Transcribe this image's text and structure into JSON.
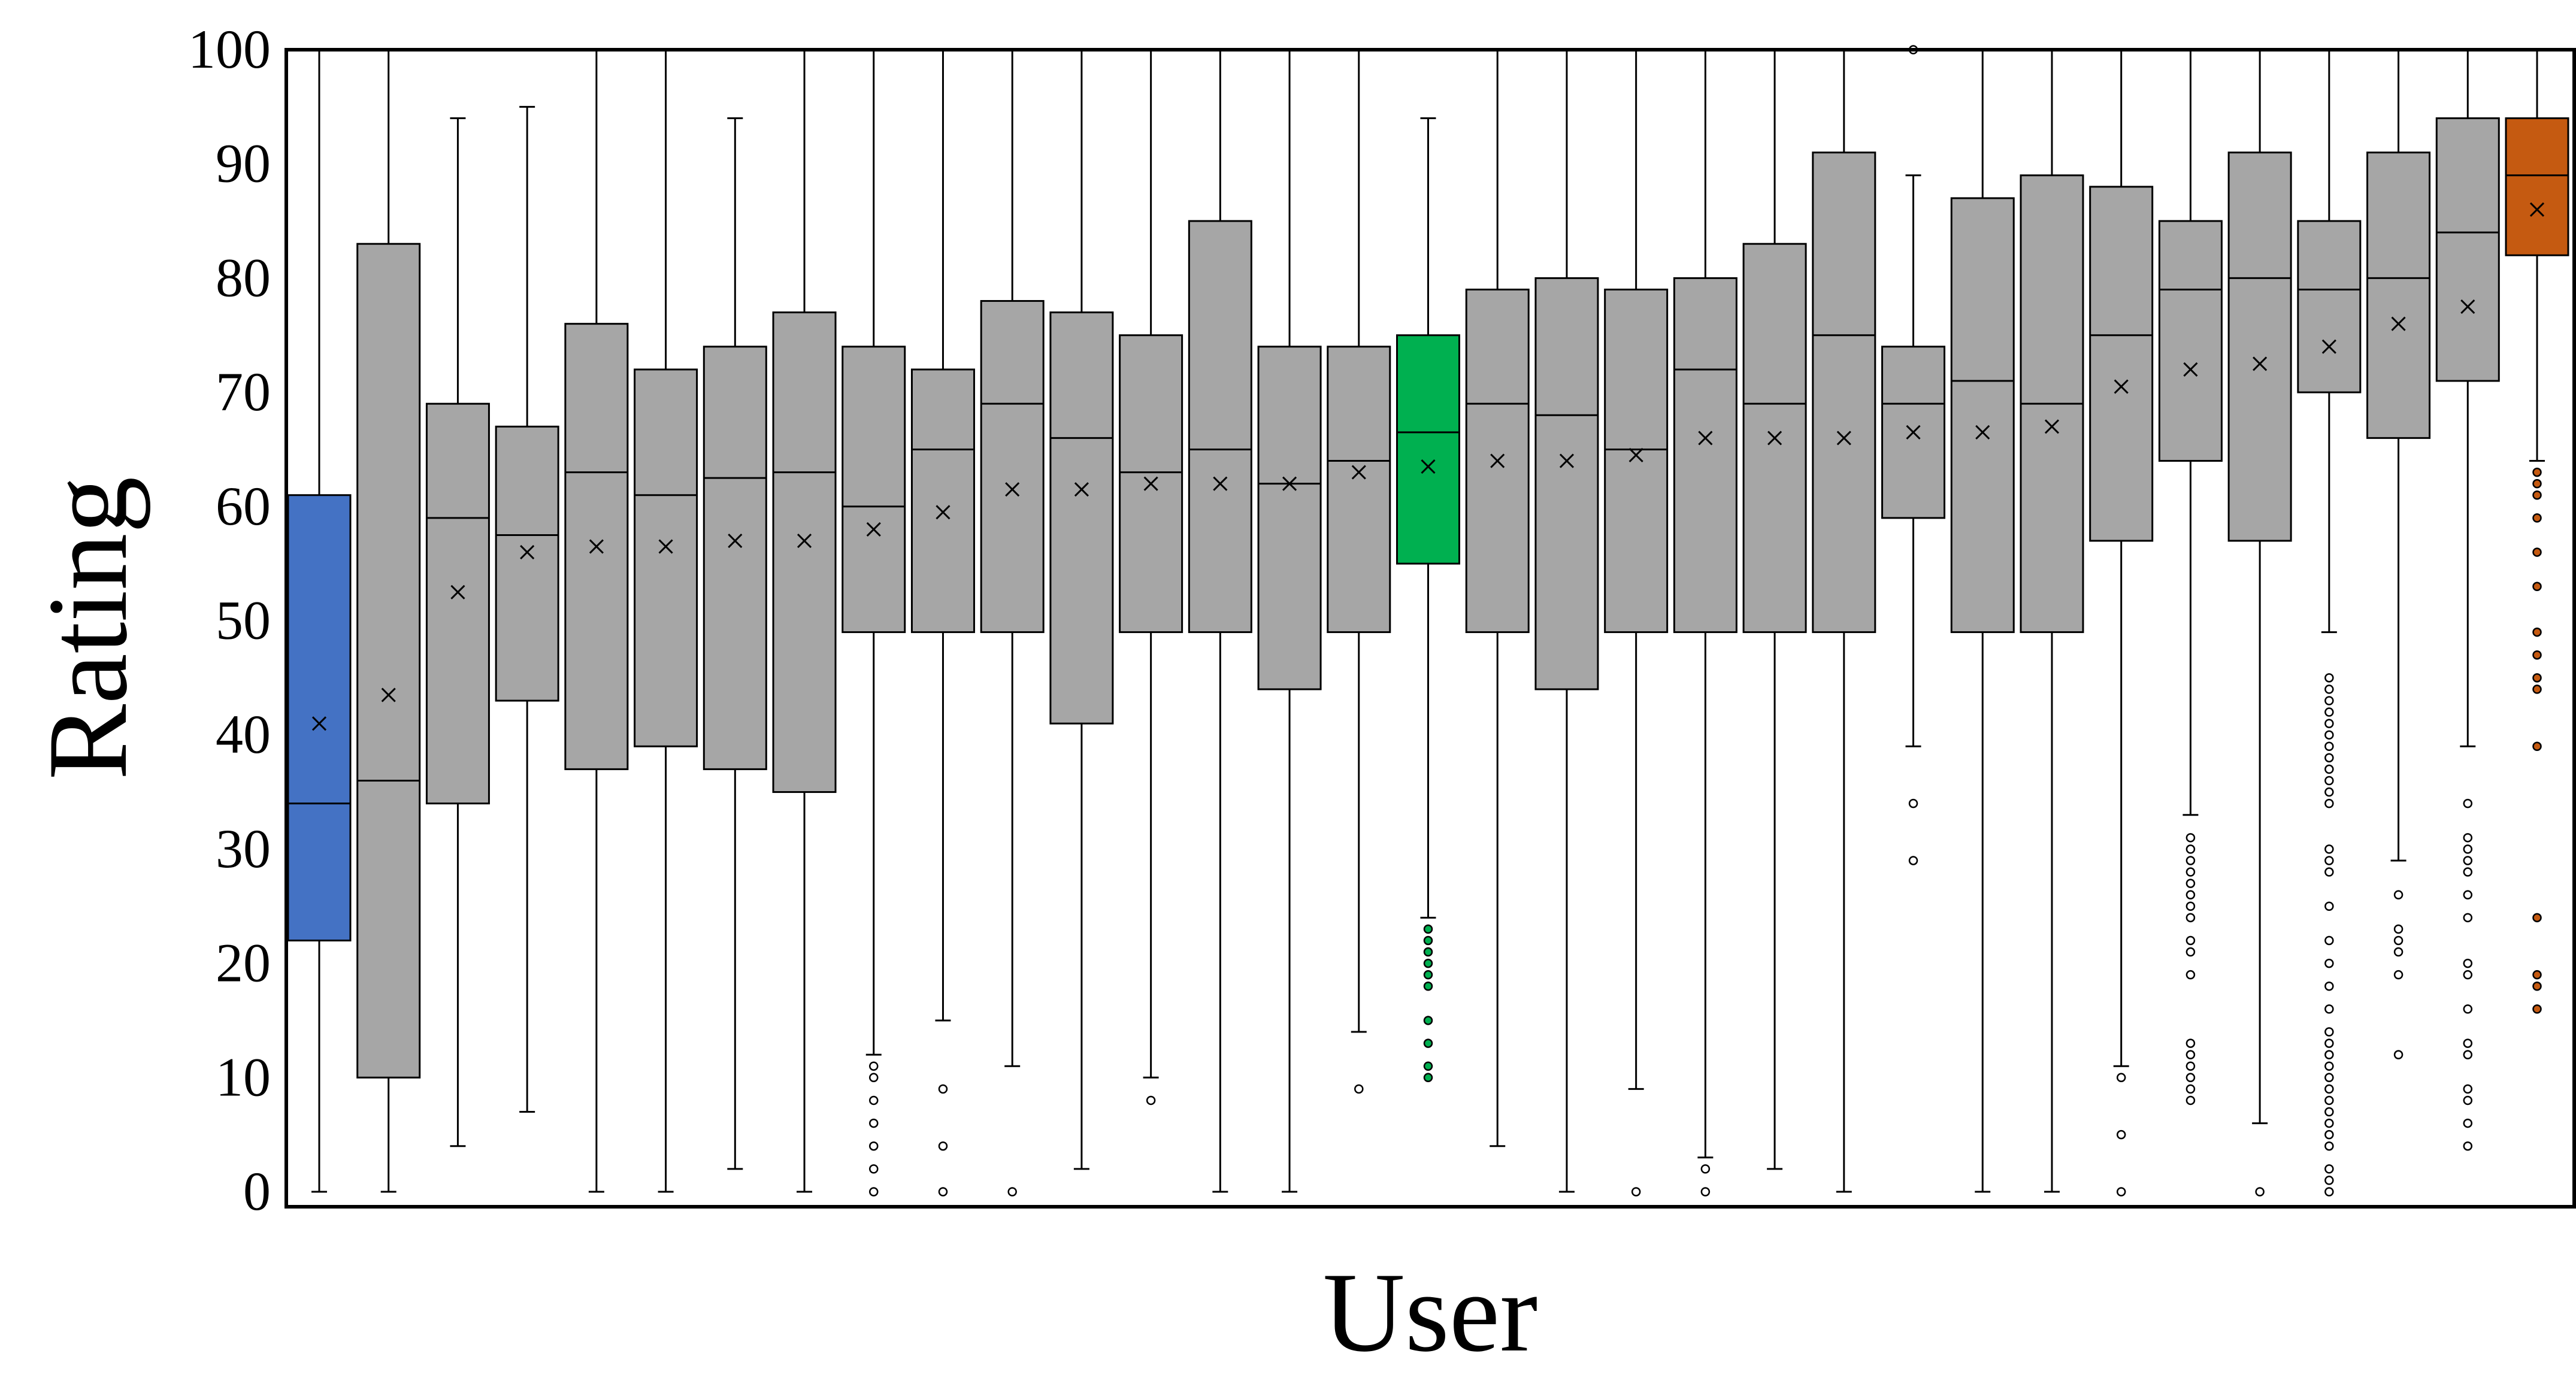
{
  "chart_data": {
    "type": "box",
    "xlabel": "User",
    "ylabel": "Rating",
    "ylim": [
      0,
      100
    ],
    "yticks": [
      0,
      10,
      20,
      30,
      40,
      50,
      60,
      70,
      80,
      90,
      100
    ],
    "grid": false,
    "legend": "none",
    "default_color": "#a6a6a6",
    "boxes": [
      {
        "min": 0,
        "q1": 22,
        "median": 34,
        "q3": 61,
        "max": 100,
        "mean": 41,
        "color": "#4472c4",
        "outliers": []
      },
      {
        "min": 0,
        "q1": 10,
        "median": 36,
        "q3": 83,
        "max": 100,
        "mean": 43.5,
        "outliers": []
      },
      {
        "min": 4,
        "q1": 34,
        "median": 59,
        "q3": 69,
        "max": 94,
        "mean": 52.5,
        "outliers": []
      },
      {
        "min": 7,
        "q1": 43,
        "median": 57.5,
        "q3": 67,
        "max": 95,
        "mean": 56,
        "outliers": []
      },
      {
        "min": 0,
        "q1": 37,
        "median": 63,
        "q3": 76,
        "max": 100,
        "mean": 56.5,
        "outliers": []
      },
      {
        "min": 0,
        "q1": 39,
        "median": 61,
        "q3": 72,
        "max": 100,
        "mean": 56.5,
        "outliers": []
      },
      {
        "min": 2,
        "q1": 37,
        "median": 62.5,
        "q3": 74,
        "max": 94,
        "mean": 57,
        "outliers": []
      },
      {
        "min": 0,
        "q1": 35,
        "median": 63,
        "q3": 77,
        "max": 100,
        "mean": 57,
        "outliers": []
      },
      {
        "min": 12,
        "q1": 49,
        "median": 60,
        "q3": 74,
        "max": 100,
        "mean": 58,
        "outliers": [
          0,
          2,
          4,
          6,
          8,
          10,
          11
        ]
      },
      {
        "min": 15,
        "q1": 49,
        "median": 65,
        "q3": 72,
        "max": 100,
        "mean": 59.5,
        "outliers": [
          0,
          4,
          9
        ]
      },
      {
        "min": 11,
        "q1": 49,
        "median": 69,
        "q3": 78,
        "max": 100,
        "mean": 61.5,
        "outliers": [
          0
        ]
      },
      {
        "min": 2,
        "q1": 41,
        "median": 66,
        "q3": 77,
        "max": 100,
        "mean": 61.5,
        "outliers": []
      },
      {
        "min": 10,
        "q1": 49,
        "median": 63,
        "q3": 75,
        "max": 100,
        "mean": 62,
        "outliers": [
          8
        ]
      },
      {
        "min": 0,
        "q1": 49,
        "median": 65,
        "q3": 85,
        "max": 100,
        "mean": 62,
        "outliers": []
      },
      {
        "min": 0,
        "q1": 44,
        "median": 62,
        "q3": 74,
        "max": 100,
        "mean": 62,
        "outliers": []
      },
      {
        "min": 14,
        "q1": 49,
        "median": 64,
        "q3": 74,
        "max": 100,
        "mean": 63,
        "outliers": [
          9
        ]
      },
      {
        "min": 24,
        "q1": 55,
        "median": 66.5,
        "q3": 75,
        "max": 94,
        "mean": 63.5,
        "color": "#00b050",
        "outliers": [
          10,
          11,
          13,
          15,
          18,
          19,
          20,
          21,
          22,
          23
        ]
      },
      {
        "min": 4,
        "q1": 49,
        "median": 69,
        "q3": 79,
        "max": 100,
        "mean": 64,
        "outliers": []
      },
      {
        "min": 0,
        "q1": 44,
        "median": 68,
        "q3": 80,
        "max": 100,
        "mean": 64,
        "outliers": []
      },
      {
        "min": 9,
        "q1": 49,
        "median": 65,
        "q3": 79,
        "max": 100,
        "mean": 64.5,
        "outliers": [
          0
        ]
      },
      {
        "min": 3,
        "q1": 49,
        "median": 72,
        "q3": 80,
        "max": 100,
        "mean": 66,
        "outliers": [
          0,
          2
        ]
      },
      {
        "min": 2,
        "q1": 49,
        "median": 69,
        "q3": 83,
        "max": 100,
        "mean": 66,
        "outliers": []
      },
      {
        "min": 0,
        "q1": 49,
        "median": 75,
        "q3": 91,
        "max": 100,
        "mean": 66,
        "outliers": []
      },
      {
        "min": 39,
        "q1": 59,
        "median": 69,
        "q3": 74,
        "max": 89,
        "mean": 66.5,
        "outliers": [
          29,
          34,
          100
        ]
      },
      {
        "min": 0,
        "q1": 49,
        "median": 71,
        "q3": 87,
        "max": 100,
        "mean": 66.5,
        "outliers": []
      },
      {
        "min": 0,
        "q1": 49,
        "median": 69,
        "q3": 89,
        "max": 100,
        "mean": 67,
        "outliers": []
      },
      {
        "min": 11,
        "q1": 57,
        "median": 75,
        "q3": 88,
        "max": 100,
        "mean": 70.5,
        "outliers": [
          0,
          5,
          10
        ]
      },
      {
        "min": 33,
        "q1": 64,
        "median": 79,
        "q3": 85,
        "max": 100,
        "mean": 72,
        "outliers": [
          8,
          9,
          10,
          11,
          12,
          13,
          19,
          21,
          22,
          24,
          25,
          26,
          27,
          28,
          29,
          30,
          31
        ]
      },
      {
        "min": 6,
        "q1": 57,
        "median": 80,
        "q3": 91,
        "max": 100,
        "mean": 72.5,
        "outliers": [
          0
        ]
      },
      {
        "min": 49,
        "q1": 70,
        "median": 79,
        "q3": 85,
        "max": 100,
        "mean": 74,
        "outliers": [
          0,
          1,
          2,
          4,
          5,
          6,
          7,
          8,
          9,
          10,
          11,
          12,
          13,
          14,
          16,
          18,
          20,
          22,
          25,
          28,
          29,
          30,
          34,
          35,
          36,
          37,
          38,
          39,
          40,
          41,
          42,
          43,
          44,
          45
        ]
      },
      {
        "min": 29,
        "q1": 66,
        "median": 80,
        "q3": 91,
        "max": 100,
        "mean": 76,
        "outliers": [
          12,
          19,
          21,
          22,
          23,
          26
        ]
      },
      {
        "min": 39,
        "q1": 71,
        "median": 84,
        "q3": 94,
        "max": 100,
        "mean": 77.5,
        "outliers": [
          4,
          6,
          8,
          9,
          12,
          13,
          16,
          19,
          20,
          24,
          26,
          28,
          29,
          30,
          31,
          34
        ]
      },
      {
        "min": 64,
        "q1": 82,
        "median": 89,
        "q3": 94,
        "max": 100,
        "mean": 86,
        "color": "#c55a11",
        "outliers": [
          16,
          18,
          19,
          24,
          39,
          44,
          45,
          47,
          49,
          53,
          56,
          59,
          61,
          62,
          63
        ]
      }
    ]
  }
}
